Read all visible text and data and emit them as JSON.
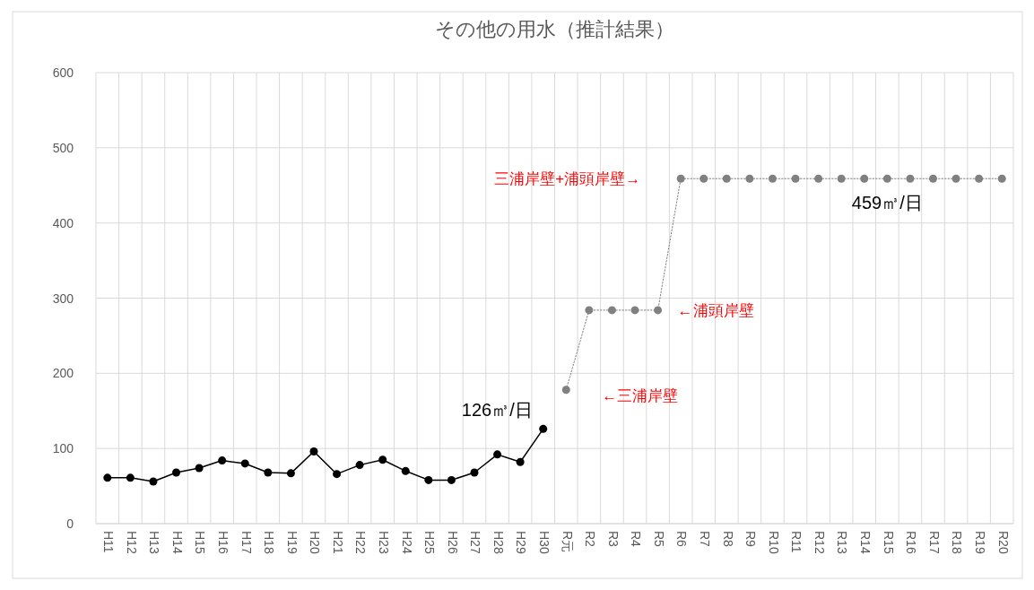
{
  "chart_data": {
    "type": "line",
    "title": "その他の用水（推計結果）",
    "categories": [
      "H11",
      "H12",
      "H13",
      "H14",
      "H15",
      "H16",
      "H17",
      "H18",
      "H19",
      "H20",
      "H21",
      "H22",
      "H23",
      "H24",
      "H25",
      "H26",
      "H27",
      "H28",
      "H29",
      "H30",
      "R元",
      "R2",
      "R3",
      "R4",
      "R5",
      "R6",
      "R7",
      "R8",
      "R9",
      "R10",
      "R11",
      "R12",
      "R13",
      "R14",
      "R15",
      "R16",
      "R17",
      "R18",
      "R19",
      "R20"
    ],
    "series": [
      {
        "color": "#000000",
        "line_style": "solid",
        "marker": "circle",
        "values": [
          61,
          61,
          56,
          68,
          74,
          84,
          80,
          68,
          67,
          96,
          66,
          78,
          85,
          70,
          58,
          58,
          68,
          92,
          82,
          126,
          null,
          null,
          null,
          null,
          null,
          null,
          null,
          null,
          null,
          null,
          null,
          null,
          null,
          null,
          null,
          null,
          null,
          null,
          null,
          null
        ]
      },
      {
        "color": "#808080",
        "line_style": "dotted",
        "marker": "circle",
        "values": [
          null,
          null,
          null,
          null,
          null,
          null,
          null,
          null,
          null,
          null,
          null,
          null,
          null,
          null,
          null,
          null,
          null,
          null,
          null,
          null,
          178,
          284,
          284,
          284,
          284,
          459,
          459,
          459,
          459,
          459,
          459,
          459,
          459,
          459,
          459,
          459,
          459,
          459,
          459,
          459
        ]
      }
    ],
    "ylim": [
      0,
      600
    ],
    "yticks": [
      0,
      100,
      200,
      300,
      400,
      500,
      600
    ],
    "grid": true,
    "annotations": [
      {
        "text": "126㎥/日",
        "x": "H30",
        "y": 126
      },
      {
        "text": "459㎥/日",
        "x": "R15",
        "y": 459
      },
      {
        "text": "三浦岸壁+浦頭岸壁→",
        "x": "R6",
        "y": 459
      },
      {
        "text": "←浦頭岸壁",
        "x": "R5",
        "y": 284
      },
      {
        "text": "←三浦岸壁",
        "x": "R元",
        "y": 178
      }
    ]
  }
}
